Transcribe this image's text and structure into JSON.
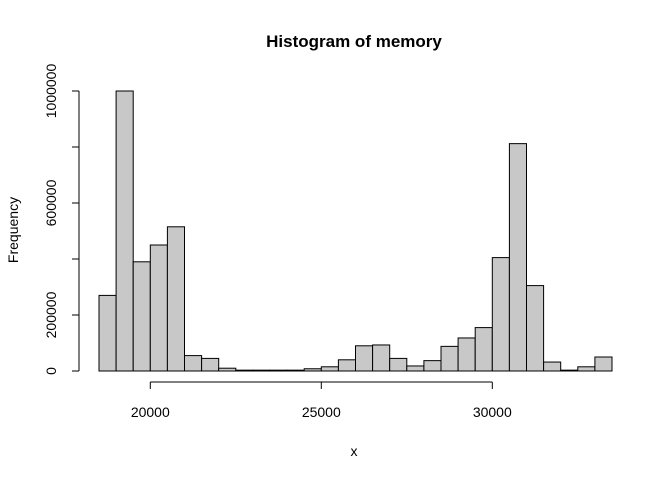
{
  "chart_data": {
    "type": "bar",
    "subtype": "histogram",
    "title": "Histogram of memory",
    "xlabel": "x",
    "ylabel": "Frequency",
    "bin_edges": [
      18500,
      19000,
      19500,
      20000,
      20500,
      21000,
      21500,
      22000,
      22500,
      23000,
      23500,
      24000,
      24500,
      25000,
      25500,
      26000,
      26500,
      27000,
      27500,
      28000,
      28500,
      29000,
      29500,
      30000,
      30500,
      31000,
      31500,
      32000,
      32500,
      33000,
      33500
    ],
    "values": [
      270000,
      1000000,
      390000,
      450000,
      515000,
      55000,
      45000,
      10000,
      3000,
      3000,
      3000,
      3000,
      8000,
      15000,
      40000,
      90000,
      93000,
      45000,
      18000,
      37000,
      88000,
      118000,
      155000,
      405000,
      812000,
      305000,
      32000,
      3000,
      15000,
      50000
    ],
    "xlim": [
      18500,
      33500
    ],
    "ylim": [
      0,
      1000000
    ],
    "x_ticks": [
      20000,
      25000,
      30000
    ],
    "y_ticks": [
      0,
      200000,
      600000,
      1000000
    ],
    "bar_color": "#c8c8c8",
    "grid": false
  }
}
